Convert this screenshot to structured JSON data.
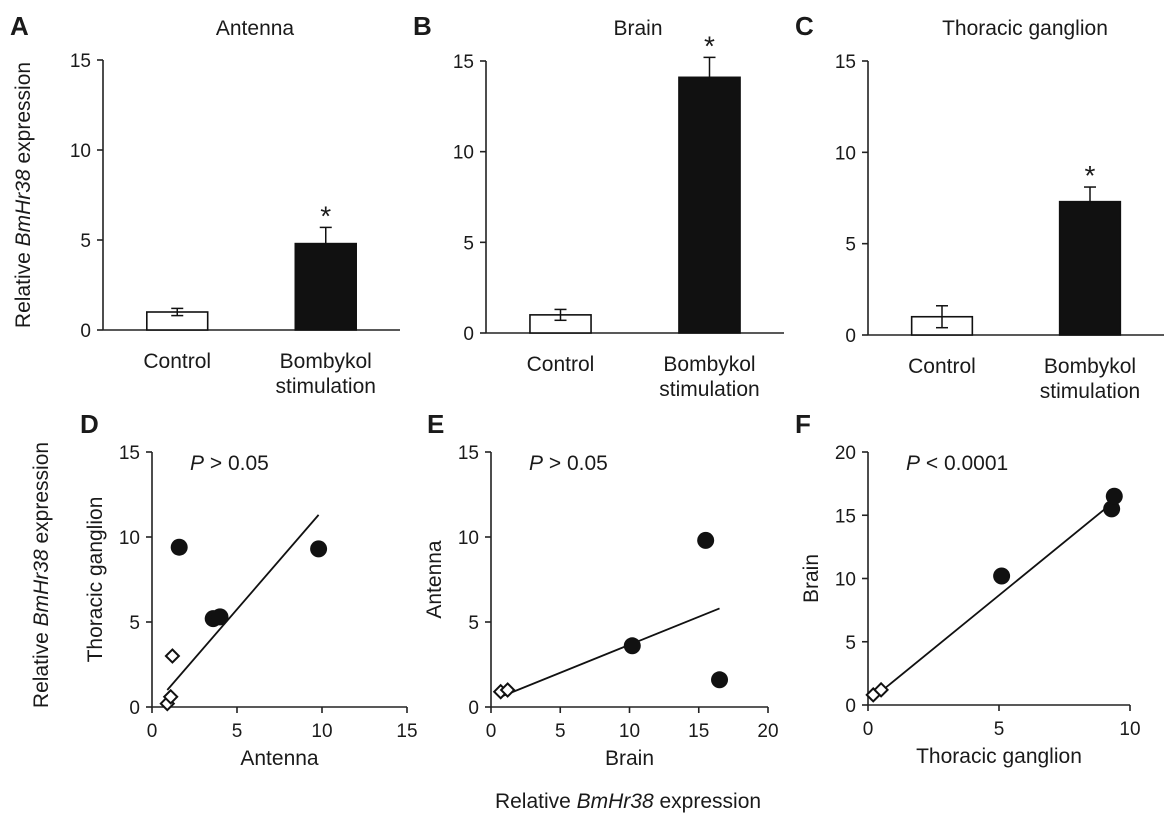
{
  "chart_data": [
    {
      "panel": "A",
      "type": "bar",
      "title": "Antenna",
      "categories": [
        "Control",
        "Bombykol\nstimulation"
      ],
      "values": [
        1.0,
        4.8
      ],
      "errors": [
        0.2,
        0.9
      ],
      "significance": [
        "",
        "*"
      ],
      "fill_colors": [
        "#ffffff",
        "#111111"
      ],
      "ylim": [
        0,
        15
      ],
      "yticks": [
        "0",
        "5",
        "10",
        "15"
      ],
      "ylabel": "Relative BmHr38 expression"
    },
    {
      "panel": "B",
      "type": "bar",
      "title": "Brain",
      "categories": [
        "Control",
        "Bombykol\nstimulation"
      ],
      "values": [
        1.0,
        14.1
      ],
      "errors": [
        0.3,
        1.1
      ],
      "significance": [
        "",
        "*"
      ],
      "fill_colors": [
        "#ffffff",
        "#111111"
      ],
      "ylim": [
        0,
        15
      ],
      "yticks": [
        "0",
        "5",
        "10",
        "15"
      ]
    },
    {
      "panel": "C",
      "type": "bar",
      "title": "Thoracic ganglion",
      "categories": [
        "Control",
        "Bombykol\nstimulation"
      ],
      "values": [
        1.0,
        7.3
      ],
      "errors": [
        0.6,
        0.8
      ],
      "significance": [
        "",
        "*"
      ],
      "fill_colors": [
        "#ffffff",
        "#111111"
      ],
      "ylim": [
        0,
        15
      ],
      "yticks": [
        "0",
        "5",
        "10",
        "15"
      ]
    },
    {
      "panel": "D",
      "type": "scatter",
      "annotation_prefix": "P",
      "annotation": " > 0.05",
      "xlabel": "Antenna",
      "ylabel": "Thoracic ganglion",
      "xlim": [
        0,
        15
      ],
      "ylim": [
        0,
        15
      ],
      "xticks": [
        "0",
        "5",
        "10",
        "15"
      ],
      "yticks": [
        "0",
        "5",
        "10",
        "15"
      ],
      "series": [
        {
          "marker": "open-diamond",
          "points": [
            [
              0.9,
              0.2
            ],
            [
              1.1,
              0.6
            ],
            [
              1.2,
              3.0
            ]
          ]
        },
        {
          "marker": "filled-circle",
          "points": [
            [
              1.6,
              9.4
            ],
            [
              3.6,
              5.2
            ],
            [
              4.0,
              5.3
            ],
            [
              9.8,
              9.3
            ]
          ]
        }
      ],
      "trendline": [
        [
          0.9,
          1.0
        ],
        [
          9.8,
          11.3
        ]
      ],
      "outer_ylabel": "Relative BmHr38 expression"
    },
    {
      "panel": "E",
      "type": "scatter",
      "annotation_prefix": "P",
      "annotation": " > 0.05",
      "xlabel": "Brain",
      "ylabel": "Antenna",
      "xlim": [
        0,
        20
      ],
      "ylim": [
        0,
        15
      ],
      "xticks": [
        "0",
        "5",
        "10",
        "15",
        "20"
      ],
      "yticks": [
        "0",
        "5",
        "10",
        "15"
      ],
      "series": [
        {
          "marker": "open-diamond",
          "points": [
            [
              0.7,
              0.9
            ],
            [
              1.2,
              1.0
            ]
          ]
        },
        {
          "marker": "filled-circle",
          "points": [
            [
              10.2,
              3.6
            ],
            [
              15.5,
              9.8
            ],
            [
              16.5,
              1.6
            ]
          ]
        }
      ],
      "trendline": [
        [
          0.7,
          0.6
        ],
        [
          16.5,
          5.8
        ]
      ],
      "outer_xlabel": "Relative BmHr38 expression"
    },
    {
      "panel": "F",
      "type": "scatter",
      "annotation_prefix": "P",
      "annotation": " < 0.0001",
      "xlabel": "Thoracic ganglion",
      "ylabel": "Brain",
      "xlim": [
        0,
        10
      ],
      "ylim": [
        0,
        20
      ],
      "xticks": [
        "0",
        "5",
        "10"
      ],
      "yticks": [
        "0",
        "5",
        "10",
        "15",
        "20"
      ],
      "series": [
        {
          "marker": "open-diamond",
          "points": [
            [
              0.2,
              0.8
            ],
            [
              0.5,
              1.2
            ]
          ]
        },
        {
          "marker": "filled-circle",
          "points": [
            [
              5.1,
              10.2
            ],
            [
              9.3,
              15.5
            ],
            [
              9.4,
              16.5
            ]
          ]
        }
      ],
      "trendline": [
        [
          0.1,
          0.4
        ],
        [
          9.4,
          16.1
        ]
      ]
    }
  ]
}
